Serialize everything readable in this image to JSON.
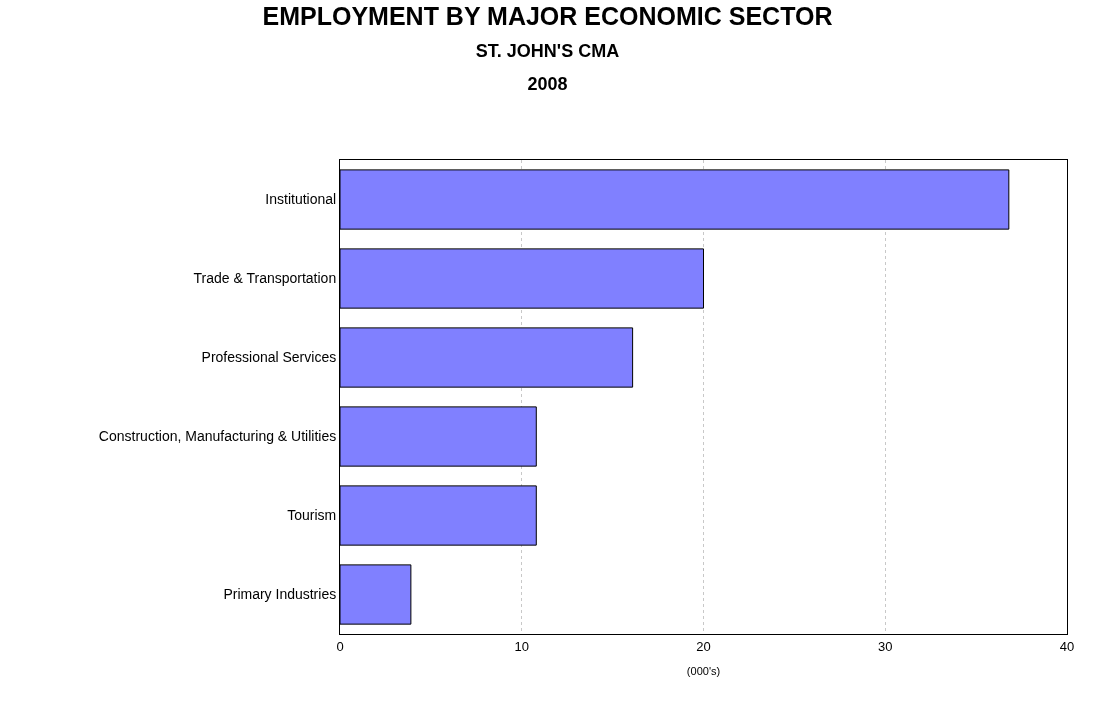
{
  "chart_data": {
    "type": "bar",
    "orientation": "horizontal",
    "title": "EMPLOYMENT BY MAJOR ECONOMIC SECTOR",
    "subtitle": "ST. JOHN'S CMA\n2008",
    "xlabel": "(000's)",
    "categories": [
      "Institutional",
      "Trade & Transportation",
      "Professional Services",
      "Construction, Manufacturing & Utilities",
      "Tourism",
      "Primary Industries"
    ],
    "values": [
      36.8,
      20.0,
      16.1,
      10.8,
      10.8,
      3.9
    ],
    "color": "#8080ff",
    "xlim": [
      0,
      40
    ],
    "xticks": [
      0,
      10,
      20,
      30,
      40
    ],
    "grid": "x",
    "legend": false
  }
}
